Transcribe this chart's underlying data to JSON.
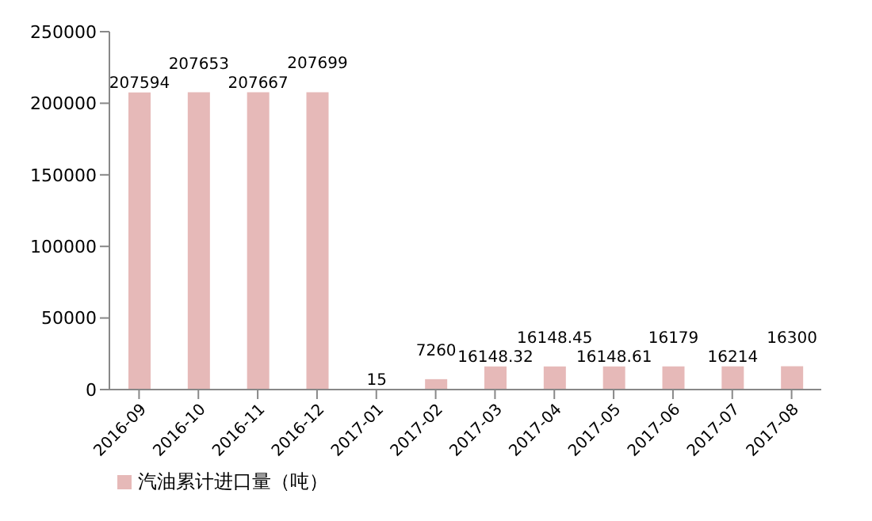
{
  "chart_data": {
    "type": "bar",
    "categories": [
      "2016-09",
      "2016-10",
      "2016-11",
      "2016-12",
      "2017-01",
      "2017-02",
      "2017-03",
      "2017-04",
      "2017-05",
      "2017-06",
      "2017-07",
      "2017-08"
    ],
    "series": [
      {
        "name": "汽油累计进口量（吨）",
        "color": "#e6b9b8",
        "values": [
          207594,
          207653,
          207667,
          207699,
          15,
          7260,
          16148.32,
          16148.45,
          16148.61,
          16179,
          16214,
          16300
        ]
      }
    ],
    "ylim": [
      0,
      250000
    ],
    "yticks": [
      0,
      50000,
      100000,
      150000,
      200000,
      250000
    ],
    "grid": false,
    "legend": "bottom left",
    "data_labels": true
  }
}
